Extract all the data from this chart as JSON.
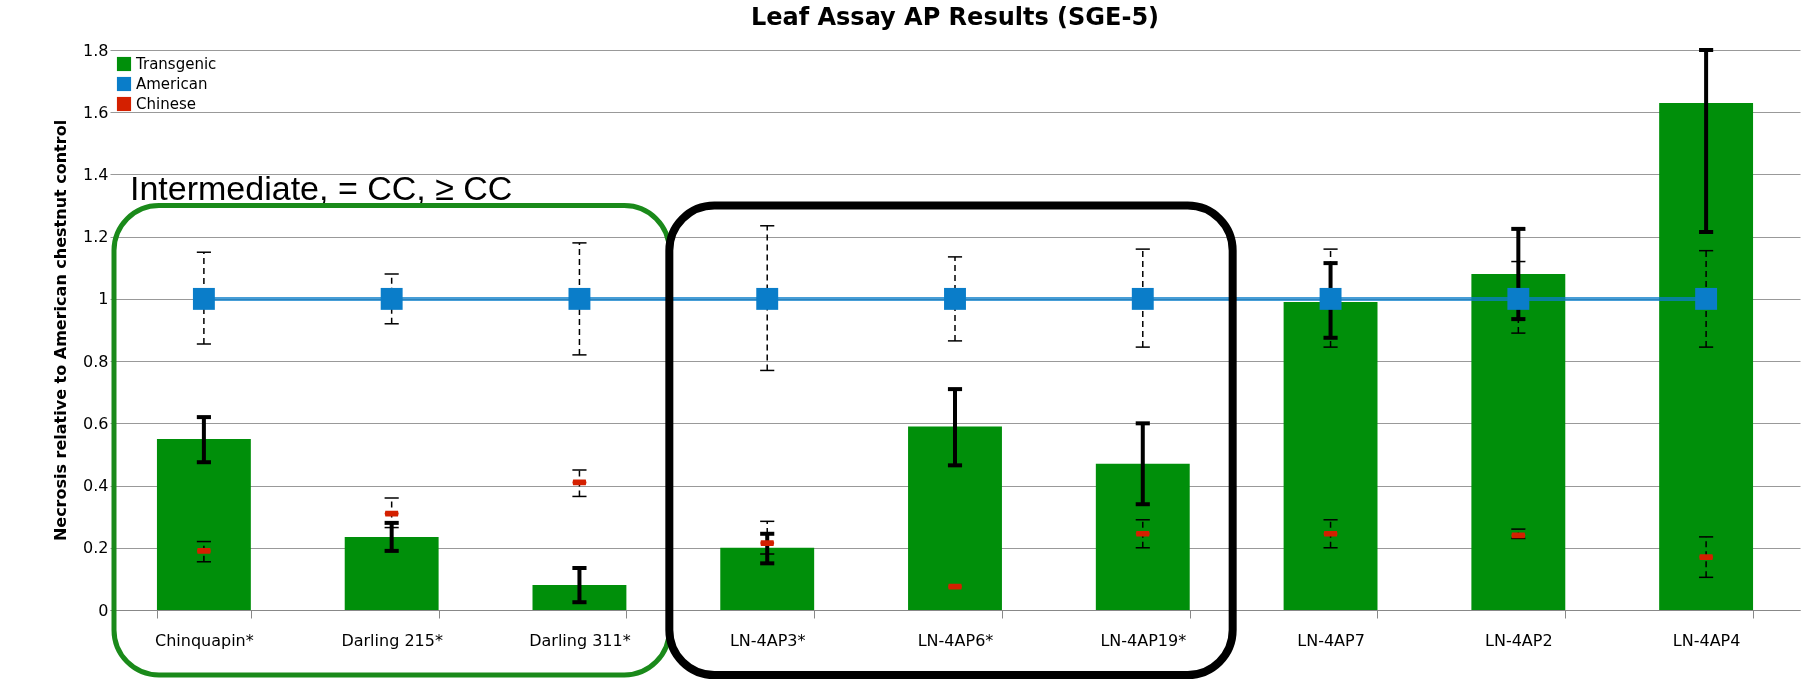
{
  "chart_data": {
    "type": "bar",
    "title": "Leaf Assay AP Results (SGE-5)",
    "ylabel": "Necrosis relative to American chestnut control",
    "categories": [
      "Chinquapin*",
      "Darling 215*",
      "Darling 311*",
      "LN-4AP3*",
      "LN-4AP6*",
      "LN-4AP19*",
      "LN-4AP7",
      "LN-4AP2",
      "LN-4AP4"
    ],
    "series": [
      {
        "name": "Transgenic",
        "color": "#008f0a",
        "values": [
          0.55,
          0.235,
          0.08,
          0.2,
          0.59,
          0.47,
          0.99,
          1.08,
          1.63
        ],
        "errors": [
          [
            0.475,
            0.62
          ],
          [
            0.19,
            0.28
          ],
          [
            0.025,
            0.135
          ],
          [
            0.15,
            0.245
          ],
          [
            0.465,
            0.71
          ],
          [
            0.34,
            0.6
          ],
          [
            0.875,
            1.115
          ],
          [
            0.935,
            1.225
          ],
          [
            1.215,
            1.8
          ]
        ]
      },
      {
        "name": "American",
        "type": "line",
        "marker": "square",
        "color": "#0a7dc9",
        "values": [
          1,
          1,
          1,
          1,
          1,
          1,
          1,
          1,
          1
        ],
        "errors": [
          [
            0.855,
            1.15
          ],
          [
            0.92,
            1.08
          ],
          [
            0.82,
            1.18
          ],
          [
            0.77,
            1.235
          ],
          [
            0.865,
            1.135
          ],
          [
            0.845,
            1.16
          ],
          [
            0.845,
            1.16
          ],
          [
            0.89,
            1.12
          ],
          [
            0.845,
            1.155
          ]
        ]
      },
      {
        "name": "Chinese",
        "type": "scatter",
        "color": "#d42000",
        "values": [
          0.19,
          0.31,
          0.41,
          0.215,
          0.075,
          0.245,
          0.245,
          0.24,
          0.17
        ],
        "errors": [
          [
            0.155,
            0.22
          ],
          [
            0.265,
            0.36
          ],
          [
            0.365,
            0.45
          ],
          [
            0.18,
            0.285
          ],
          null,
          [
            0.2,
            0.29
          ],
          [
            0.2,
            0.29
          ],
          [
            0.23,
            0.26
          ],
          [
            0.105,
            0.235
          ]
        ]
      }
    ],
    "ylim": [
      0,
      1.8
    ],
    "yticks": [
      0,
      0.2,
      0.4,
      0.6,
      0.8,
      1,
      1.2,
      1.4,
      1.6,
      1.8
    ],
    "grid": "y",
    "legend": "top left",
    "annotations": [
      "Intermediate, = CC, ≥ CC"
    ]
  }
}
